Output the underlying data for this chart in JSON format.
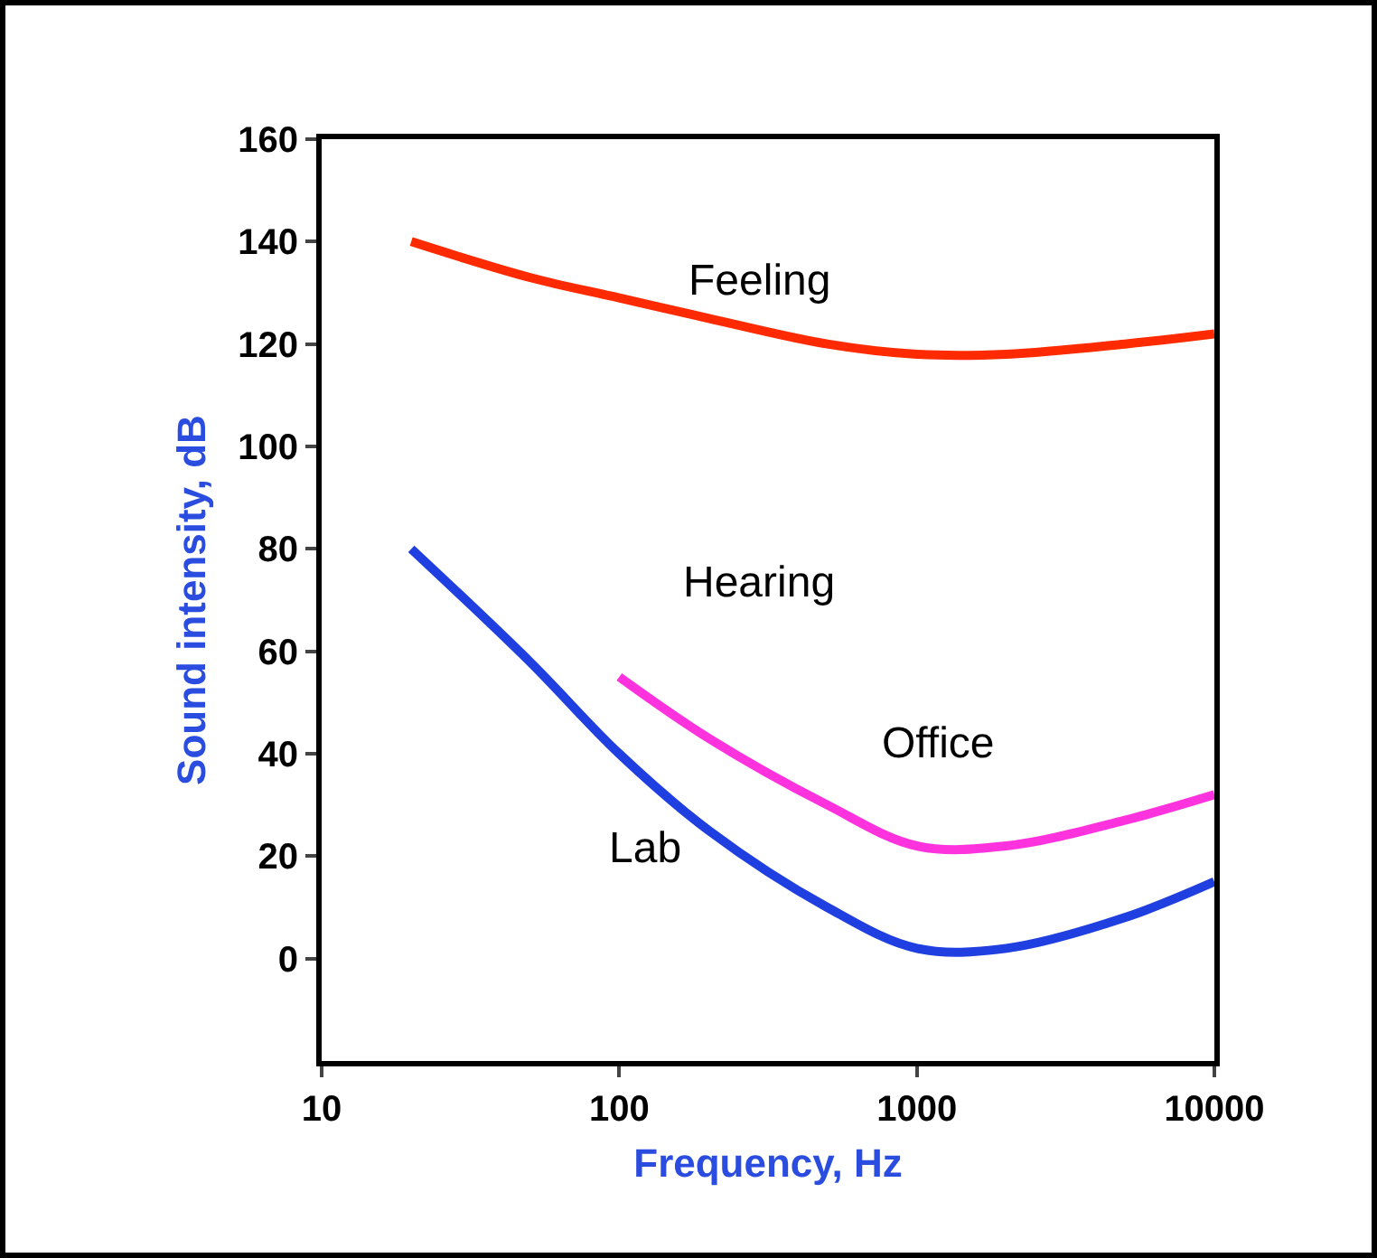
{
  "chart_data": {
    "type": "line",
    "xlabel": "Frequency, Hz",
    "ylabel": "Sound intensity, dB",
    "log": "x",
    "xlim": [
      10,
      10000
    ],
    "xticks": [
      10,
      100,
      1000,
      10000
    ],
    "ylim": [
      -20,
      160
    ],
    "yticks": [
      0,
      20,
      40,
      60,
      80,
      100,
      120,
      140,
      160
    ],
    "grid": false,
    "legend": false,
    "marker": "none",
    "line_style": "solid",
    "series": [
      {
        "name": "Feeling",
        "color": "#ff2a00",
        "x": [
          20,
          50,
          100,
          200,
          500,
          1000,
          2000,
          5000,
          10000
        ],
        "values": [
          140,
          133,
          129,
          125,
          120,
          118,
          118,
          120,
          122
        ]
      },
      {
        "name": "Office",
        "color": "#ff33dd",
        "x": [
          100,
          200,
          500,
          1000,
          2000,
          5000,
          10000
        ],
        "values": [
          55,
          43,
          30,
          22,
          22,
          27,
          32
        ]
      },
      {
        "name": "Lab",
        "color": "#1f3fe0",
        "x": [
          20,
          50,
          100,
          200,
          500,
          1000,
          2000,
          5000,
          10000
        ],
        "values": [
          80,
          58,
          40,
          25,
          10,
          2,
          2,
          8,
          15
        ]
      }
    ],
    "annotations": [
      "Hearing"
    ]
  }
}
